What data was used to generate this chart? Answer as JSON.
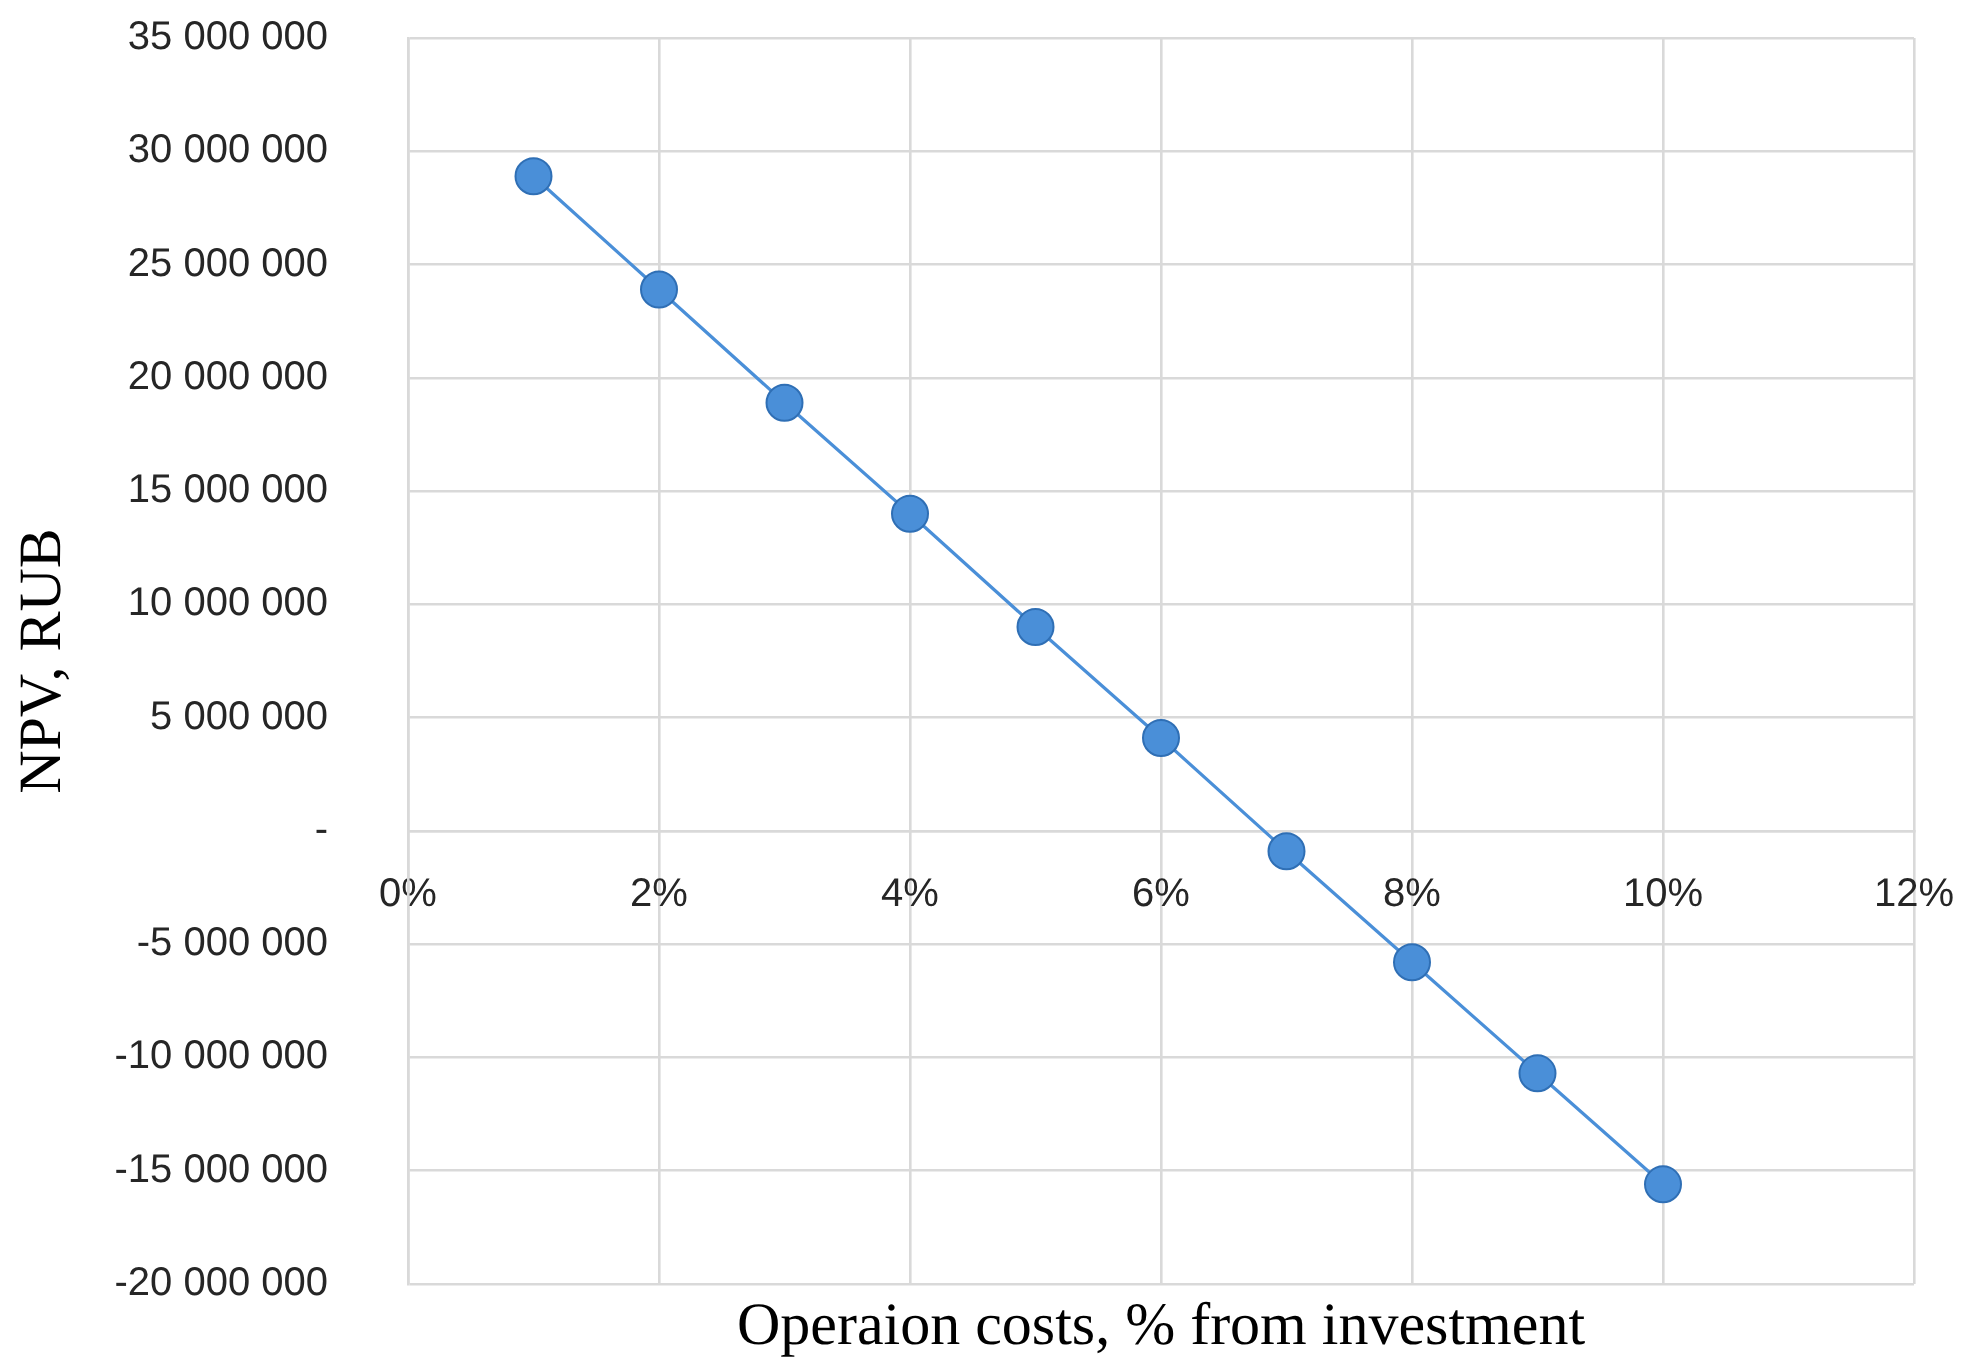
{
  "chart_data": {
    "type": "line",
    "xlabel": "Operaion costs, % from investment",
    "ylabel": "NPV, RUB",
    "x": [
      1,
      2,
      3,
      4,
      5,
      6,
      7,
      8,
      9,
      10
    ],
    "series": [
      {
        "color": "#4a8fd8",
        "values": [
          28900000,
          23900000,
          18900000,
          14000000,
          9000000,
          4100000,
          -900000,
          -5800000,
          -10700000,
          -15600000
        ]
      }
    ],
    "xlim": [
      0,
      12
    ],
    "xticks": [
      {
        "value": 0,
        "label": "0%"
      },
      {
        "value": 2,
        "label": "2%"
      },
      {
        "value": 4,
        "label": "4%"
      },
      {
        "value": 6,
        "label": "6%"
      },
      {
        "value": 8,
        "label": "8%"
      },
      {
        "value": 10,
        "label": "10%"
      },
      {
        "value": 12,
        "label": "12%"
      }
    ],
    "ylim": [
      -20000000,
      35000000
    ],
    "yticks": [
      {
        "value": -20000000,
        "label": "-20 000 000"
      },
      {
        "value": -15000000,
        "label": "-15 000 000"
      },
      {
        "value": -10000000,
        "label": "-10 000 000"
      },
      {
        "value": -5000000,
        "label": "-5 000 000"
      },
      {
        "value": 0,
        "label": "-"
      },
      {
        "value": 5000000,
        "label": "5 000 000"
      },
      {
        "value": 10000000,
        "label": "10 000 000"
      },
      {
        "value": 15000000,
        "label": "15 000 000"
      },
      {
        "value": 20000000,
        "label": "20 000 000"
      },
      {
        "value": 25000000,
        "label": "25 000 000"
      },
      {
        "value": 30000000,
        "label": "30 000 000"
      },
      {
        "value": 35000000,
        "label": "35 000 000"
      }
    ],
    "grid": true,
    "legend": false,
    "marker": "circle",
    "line_style": "solid"
  }
}
